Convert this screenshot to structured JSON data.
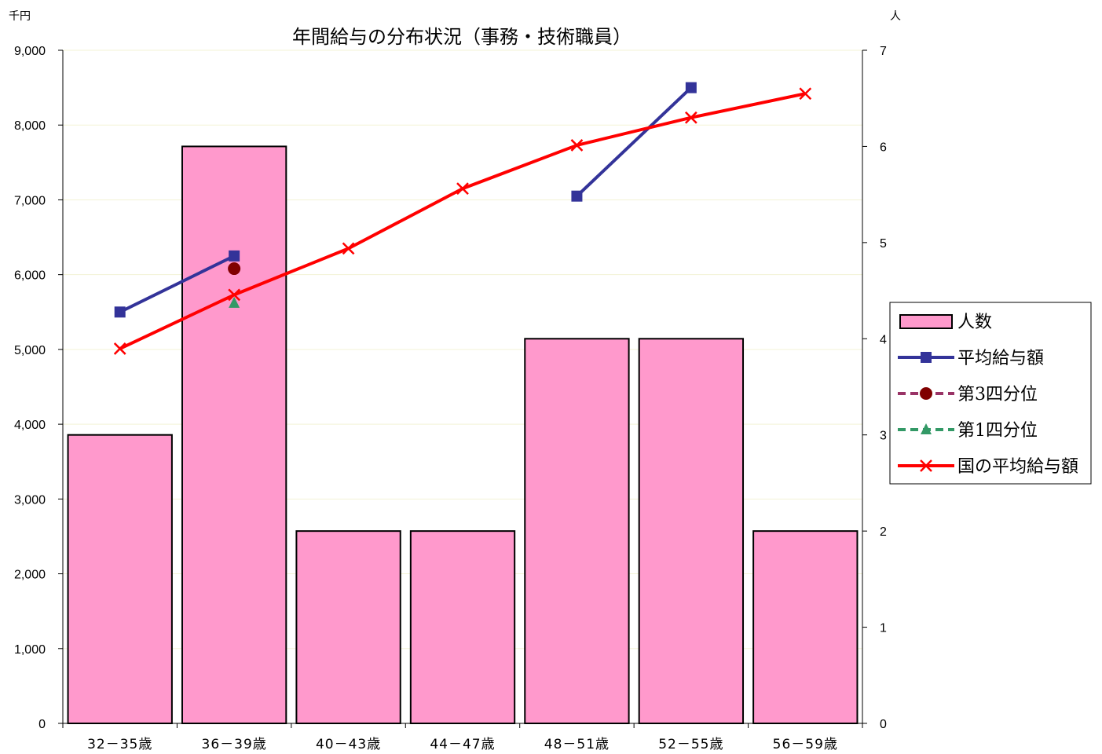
{
  "chart_data": {
    "type": "bar",
    "title": "年間給与の分布状況（事務・技術職員）",
    "left_unit": "千円",
    "right_unit": "人",
    "categories": [
      "32－35歳",
      "36－39歳",
      "40－43歳",
      "44－47歳",
      "48－51歳",
      "52－55歳",
      "56－59歳"
    ],
    "left_axis": {
      "min": 0,
      "max": 9000,
      "step": 1000,
      "ticks": [
        "0",
        "1,000",
        "2,000",
        "3,000",
        "4,000",
        "5,000",
        "6,000",
        "7,000",
        "8,000",
        "9,000"
      ]
    },
    "right_axis": {
      "min": 0,
      "max": 7,
      "step": 1,
      "ticks": [
        "0",
        "1",
        "2",
        "3",
        "4",
        "5",
        "6",
        "7"
      ]
    },
    "grid": true,
    "legend_position": "right",
    "series": [
      {
        "name": "人数",
        "kind": "bar",
        "axis": "right",
        "color": "#ff99cc",
        "values": [
          3,
          6,
          2,
          2,
          4,
          4,
          2
        ]
      },
      {
        "name": "平均給与額",
        "kind": "line",
        "axis": "left",
        "color": "#333399",
        "marker": "square",
        "values": [
          5500,
          6250,
          null,
          null,
          7050,
          8500,
          null
        ]
      },
      {
        "name": "第3四分位",
        "kind": "line",
        "axis": "left",
        "color": "#993366",
        "marker": "circle",
        "dashed": true,
        "marker_color": "#800000",
        "values": [
          null,
          6080,
          null,
          null,
          null,
          null,
          null
        ]
      },
      {
        "name": "第1四分位",
        "kind": "line",
        "axis": "left",
        "color": "#339966",
        "marker": "triangle",
        "dashed": true,
        "values": [
          null,
          5620,
          null,
          null,
          null,
          null,
          null
        ]
      },
      {
        "name": "国の平均給与額",
        "kind": "line",
        "axis": "left",
        "color": "#ff0000",
        "marker": "x",
        "values": [
          5010,
          5730,
          6350,
          7150,
          7730,
          8100,
          8420
        ]
      }
    ]
  }
}
